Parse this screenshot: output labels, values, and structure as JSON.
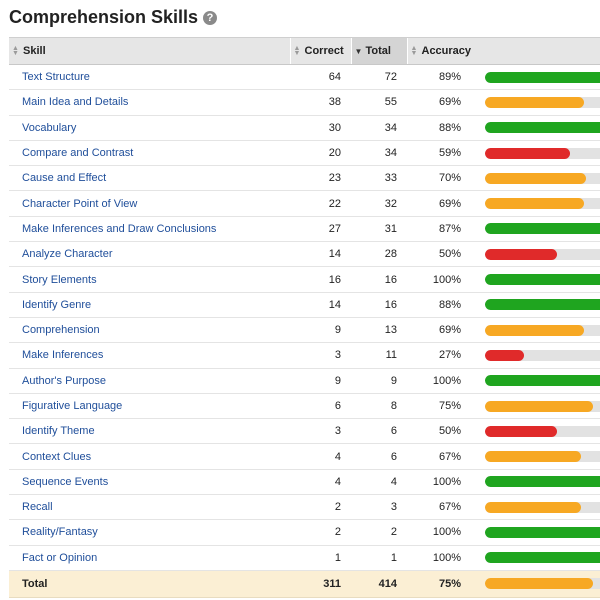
{
  "title": "Comprehension Skills",
  "help_icon": "?",
  "columns": {
    "skill": "Skill",
    "correct": "Correct",
    "total": "Total",
    "accuracy": "Accuracy"
  },
  "colors": {
    "green": "#1fa51f",
    "orange": "#f7a823",
    "red": "#e02a2a",
    "track": "#e2e2e2"
  },
  "rows": [
    {
      "skill": "Text Structure",
      "correct": "64",
      "total": "72",
      "accuracy": "89%",
      "level": 0.89,
      "color": "green"
    },
    {
      "skill": "Main Idea and Details",
      "correct": "38",
      "total": "55",
      "accuracy": "69%",
      "level": 0.69,
      "color": "orange"
    },
    {
      "skill": "Vocabulary",
      "correct": "30",
      "total": "34",
      "accuracy": "88%",
      "level": 0.88,
      "color": "green"
    },
    {
      "skill": "Compare and Contrast",
      "correct": "20",
      "total": "34",
      "accuracy": "59%",
      "level": 0.59,
      "color": "red"
    },
    {
      "skill": "Cause and Effect",
      "correct": "23",
      "total": "33",
      "accuracy": "70%",
      "level": 0.7,
      "color": "orange"
    },
    {
      "skill": "Character Point of View",
      "correct": "22",
      "total": "32",
      "accuracy": "69%",
      "level": 0.69,
      "color": "orange"
    },
    {
      "skill": "Make Inferences and Draw Conclusions",
      "correct": "27",
      "total": "31",
      "accuracy": "87%",
      "level": 0.87,
      "color": "green"
    },
    {
      "skill": "Analyze Character",
      "correct": "14",
      "total": "28",
      "accuracy": "50%",
      "level": 0.5,
      "color": "red"
    },
    {
      "skill": "Story Elements",
      "correct": "16",
      "total": "16",
      "accuracy": "100%",
      "level": 1.0,
      "color": "green"
    },
    {
      "skill": "Identify Genre",
      "correct": "14",
      "total": "16",
      "accuracy": "88%",
      "level": 0.88,
      "color": "green"
    },
    {
      "skill": "Comprehension",
      "correct": "9",
      "total": "13",
      "accuracy": "69%",
      "level": 0.69,
      "color": "orange"
    },
    {
      "skill": "Make Inferences",
      "correct": "3",
      "total": "11",
      "accuracy": "27%",
      "level": 0.27,
      "color": "red"
    },
    {
      "skill": "Author's Purpose",
      "correct": "9",
      "total": "9",
      "accuracy": "100%",
      "level": 1.0,
      "color": "green"
    },
    {
      "skill": "Figurative Language",
      "correct": "6",
      "total": "8",
      "accuracy": "75%",
      "level": 0.75,
      "color": "orange"
    },
    {
      "skill": "Identify Theme",
      "correct": "3",
      "total": "6",
      "accuracy": "50%",
      "level": 0.5,
      "color": "red"
    },
    {
      "skill": "Context Clues",
      "correct": "4",
      "total": "6",
      "accuracy": "67%",
      "level": 0.67,
      "color": "orange"
    },
    {
      "skill": "Sequence Events",
      "correct": "4",
      "total": "4",
      "accuracy": "100%",
      "level": 1.0,
      "color": "green"
    },
    {
      "skill": "Recall",
      "correct": "2",
      "total": "3",
      "accuracy": "67%",
      "level": 0.67,
      "color": "orange"
    },
    {
      "skill": "Reality/Fantasy",
      "correct": "2",
      "total": "2",
      "accuracy": "100%",
      "level": 1.0,
      "color": "green"
    },
    {
      "skill": "Fact or Opinion",
      "correct": "1",
      "total": "1",
      "accuracy": "100%",
      "level": 1.0,
      "color": "green"
    }
  ],
  "total_row": {
    "label": "Total",
    "correct": "311",
    "total": "414",
    "accuracy": "75%",
    "level": 0.75,
    "color": "orange"
  }
}
